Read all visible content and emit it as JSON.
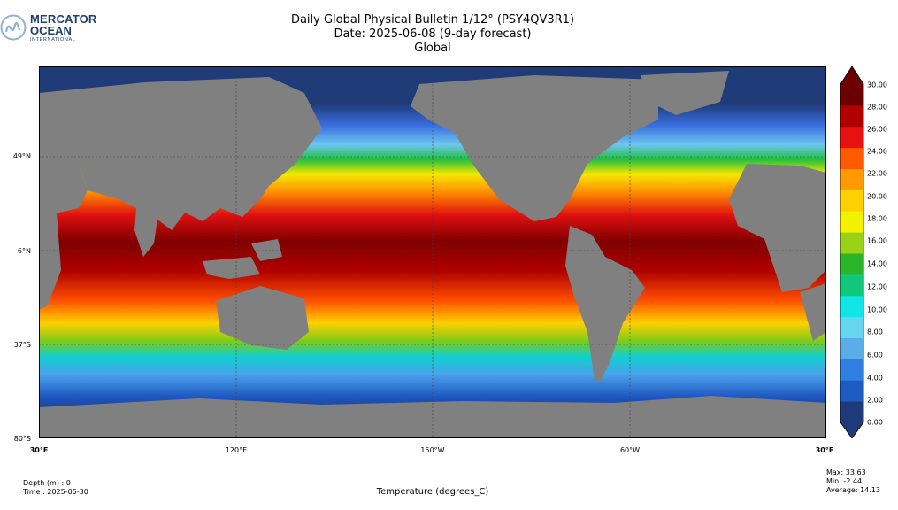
{
  "logo": {
    "line1": "MERCATOR",
    "line2": "OCEAN",
    "line3": "INTERNATIONAL"
  },
  "title": {
    "line1": "Daily Global Physical Bulletin 1/12° (PSY4QV3R1)",
    "line2": "Date: 2025-06-08 (9-day forecast)",
    "line3": "Global"
  },
  "map": {
    "lat_labels": [
      "49°N",
      "6°N",
      "37°S",
      "80°S"
    ],
    "lon_labels": [
      "30°E",
      "120°E",
      "150°W",
      "60°W",
      "30°E"
    ]
  },
  "colorbar": {
    "ticks": [
      "30.00",
      "28.00",
      "26.00",
      "24.00",
      "22.00",
      "20.00",
      "18.00",
      "16.00",
      "14.00",
      "12.00",
      "10.00",
      "8.00",
      "6.00",
      "4.00",
      "2.00",
      "0.00"
    ],
    "range": [
      0,
      30
    ],
    "colors": [
      "#1e3a7a",
      "#1d5bc0",
      "#2f7fe0",
      "#5aaee8",
      "#66d6f0",
      "#10e6e6",
      "#11c87a",
      "#2bb52b",
      "#9ad21a",
      "#f2f200",
      "#ffd000",
      "#ff9a00",
      "#ff5a00",
      "#e81010",
      "#b00000",
      "#6a0000"
    ]
  },
  "meta": {
    "depth": "Depth (m) : 0",
    "time": "Time : 2025-05-30",
    "max": "Max: 33.63",
    "min": "Min: -2.44",
    "average": "Average: 14.13",
    "units_label": "Temperature (degrees_C)"
  },
  "colors": {
    "land": "#808080",
    "sea_ice": "#1f3b78",
    "grid": "#404040"
  }
}
